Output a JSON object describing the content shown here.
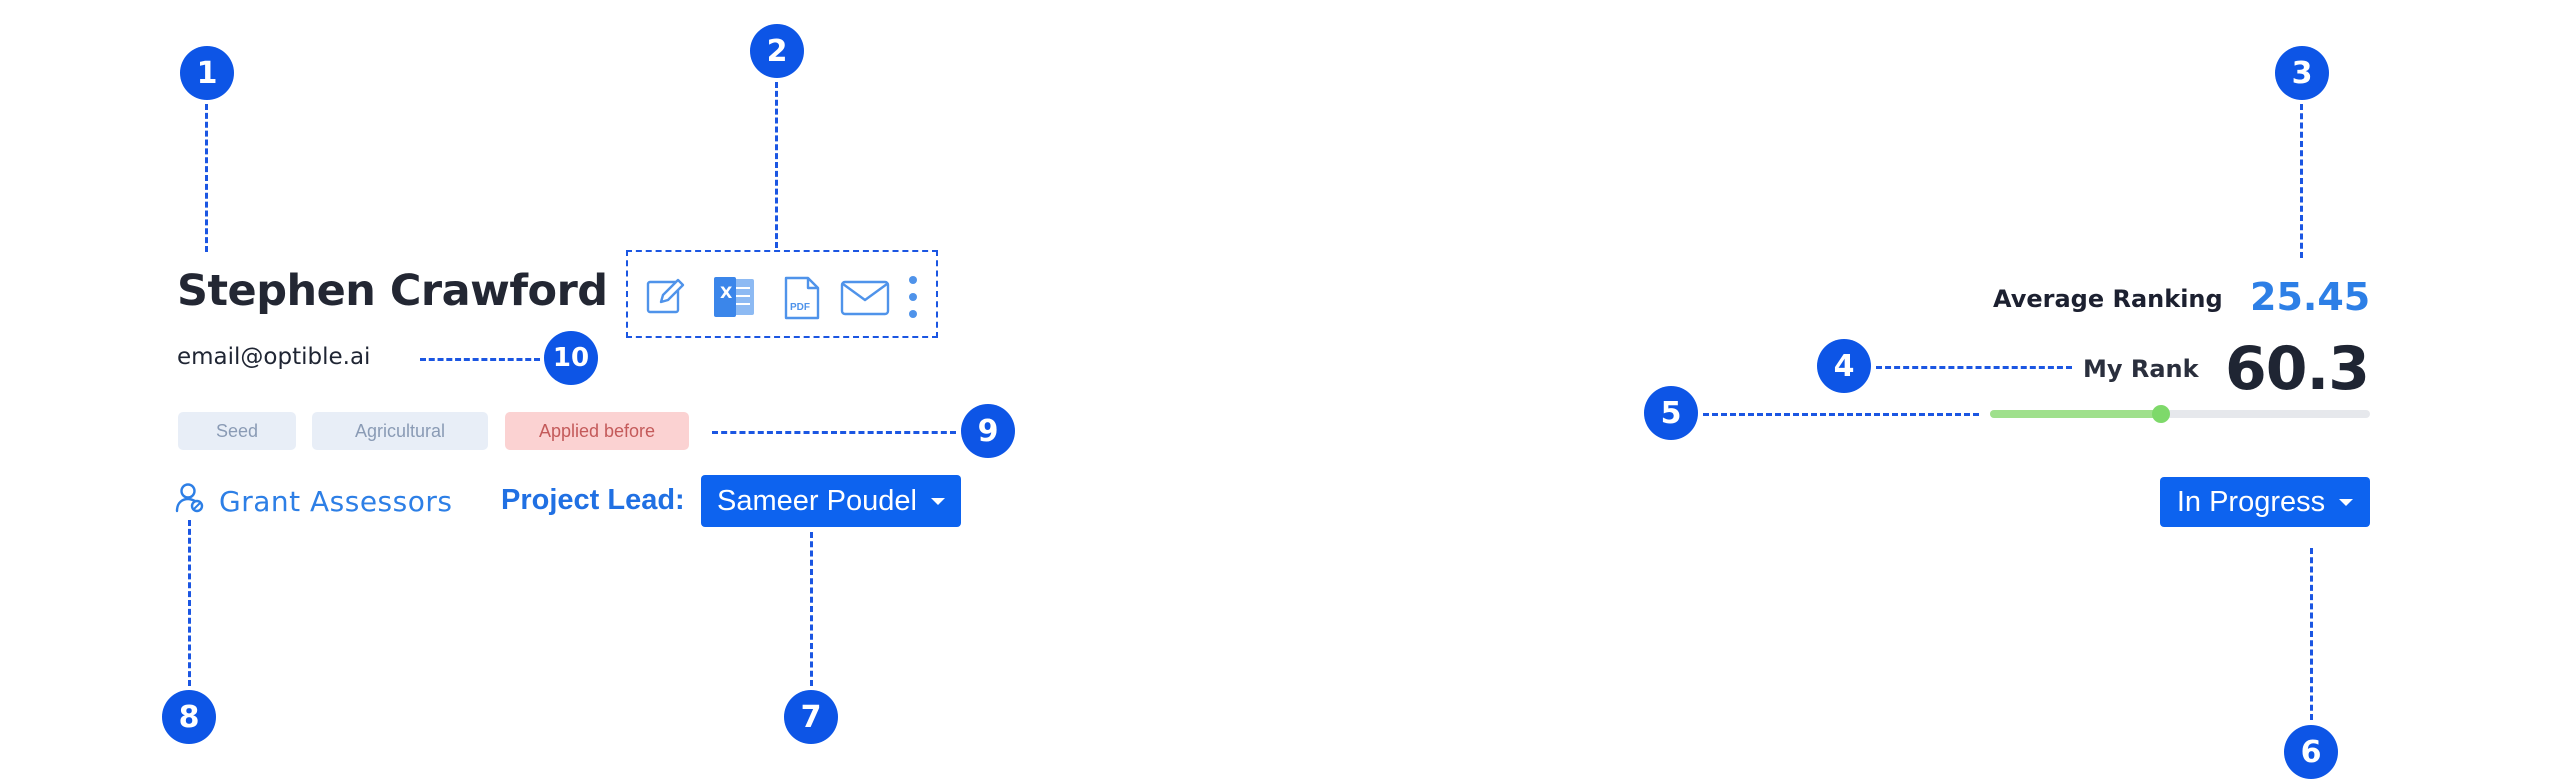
{
  "profile": {
    "name": "Stephen Crawford",
    "email": "email@optible.ai"
  },
  "actions": {
    "icons": [
      "edit-icon",
      "excel-icon",
      "pdf-icon",
      "mail-icon",
      "more-vertical-icon"
    ],
    "pdf_label": "PDF",
    "excel_label": "X"
  },
  "tags": [
    "Seed",
    "Agricultural",
    "Applied before"
  ],
  "assessors": {
    "label": "Grant Assessors"
  },
  "project_lead": {
    "label": "Project Lead:",
    "selected": "Sameer Poudel"
  },
  "ranking": {
    "average_label": "Average Ranking",
    "average_value": "25.45",
    "my_rank_label": "My Rank",
    "my_rank_value": "60.3",
    "progress": 0.45
  },
  "status": {
    "selected": "In Progress"
  },
  "callouts": [
    "1",
    "2",
    "3",
    "4",
    "5",
    "6",
    "7",
    "8",
    "9",
    "10"
  ],
  "colors": {
    "accent": "#0d63ef",
    "callout": "#0d55e6",
    "link": "#2d7fe6",
    "tag_bg": "#e8eef7",
    "tag_warn_bg": "#fbd2d2",
    "slider_fill": "#9fe08c"
  }
}
